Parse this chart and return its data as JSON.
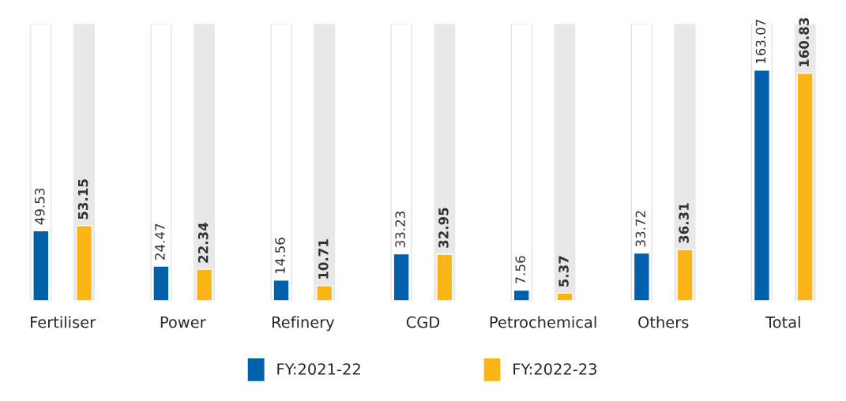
{
  "chart_data": {
    "type": "bar",
    "categories": [
      "Fertiliser",
      "Power",
      "Refinery",
      "CGD",
      "Petrochemical",
      "Others",
      "Total"
    ],
    "series": [
      {
        "name": "FY:2021-22",
        "color": "#0060a9",
        "values": [
          49.53,
          24.47,
          14.56,
          33.23,
          7.56,
          33.72,
          163.07
        ]
      },
      {
        "name": "FY:2022-23",
        "color": "#fbb516",
        "values": [
          53.15,
          22.34,
          10.71,
          32.95,
          5.37,
          36.31,
          160.83
        ]
      }
    ],
    "data_labels": true,
    "legend": "bottom",
    "grid": false
  }
}
